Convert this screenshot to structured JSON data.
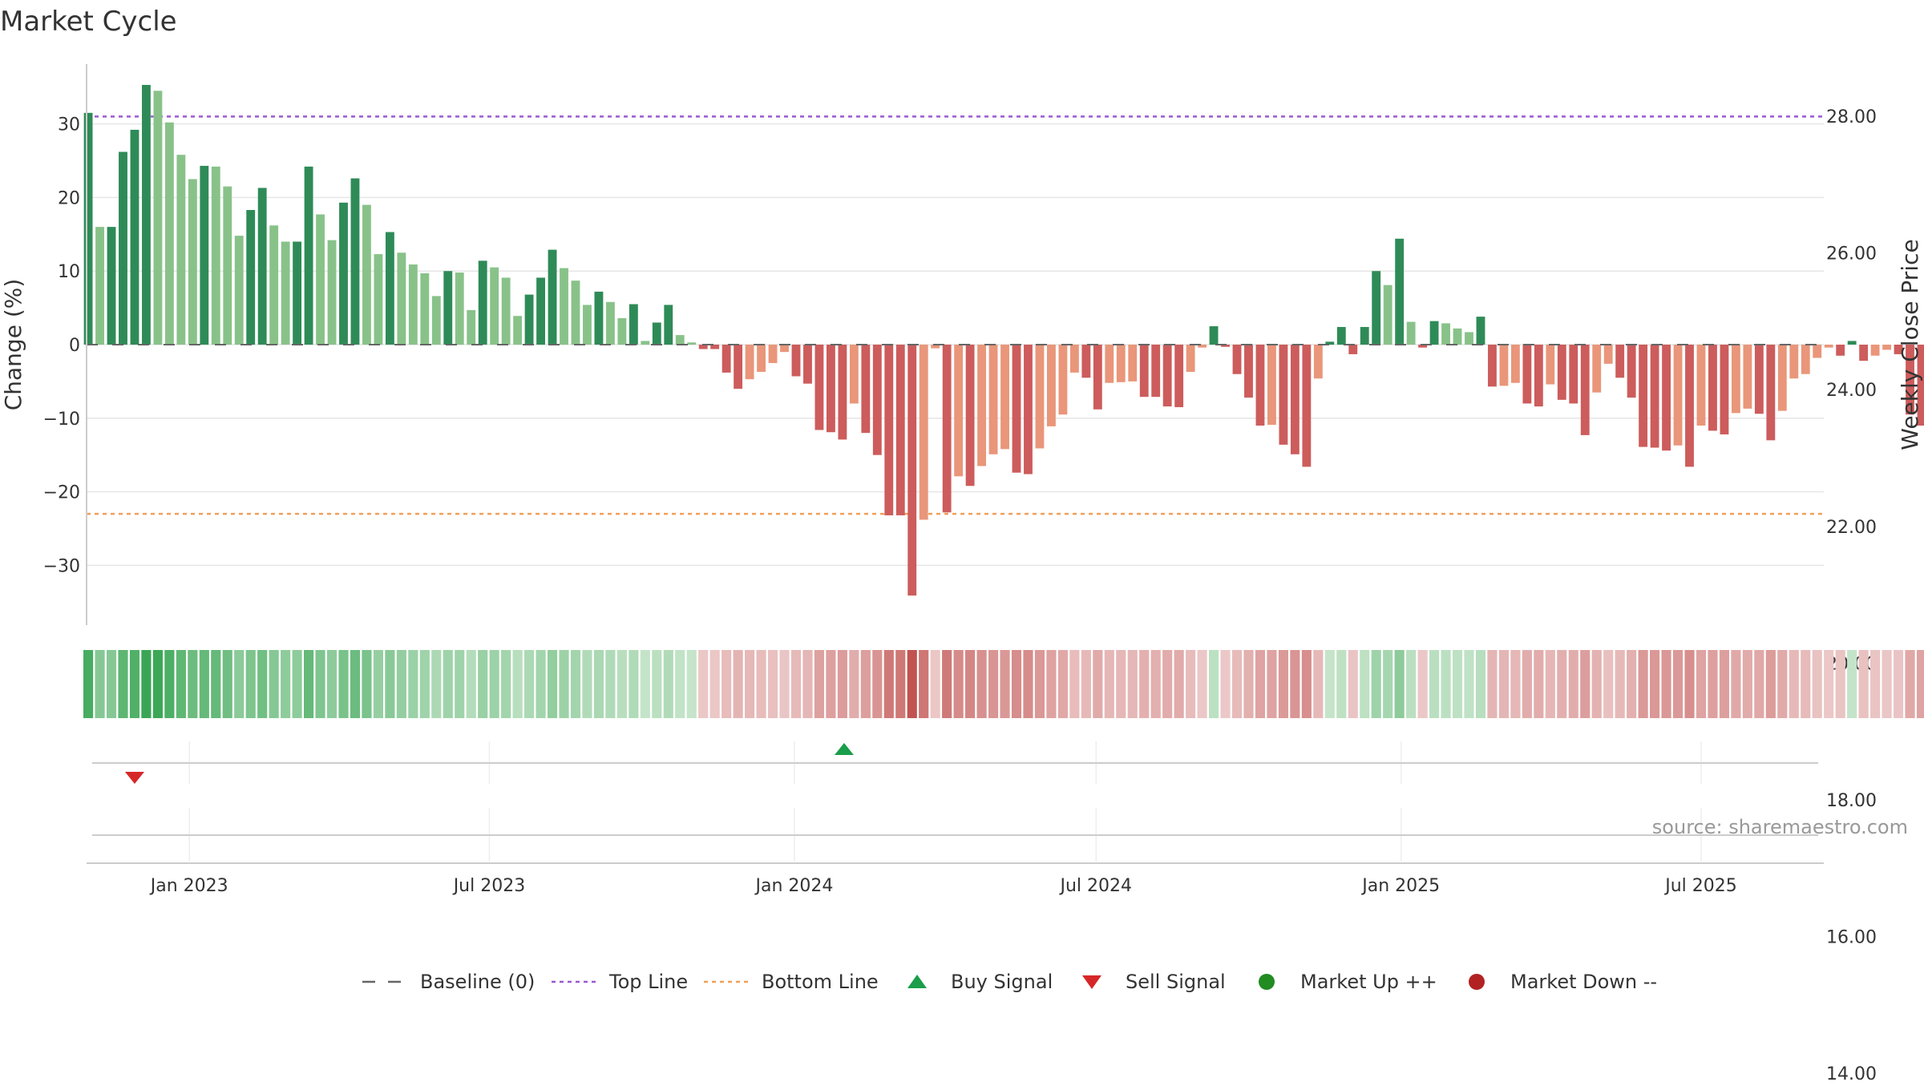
{
  "title": "Market Cycle",
  "source_text": "source: sharemaestro.com",
  "chart_data": {
    "type": "bar",
    "ylabel": "Change (%)",
    "y2label": "Weekly Close Price",
    "ylim": [
      -38,
      38
    ],
    "y2lim": [
      12.5,
      29.75
    ],
    "yticks": [
      30,
      20,
      10,
      0,
      -10,
      -20,
      -30
    ],
    "ytick_labels": [
      "30",
      "20",
      "10",
      "0",
      "−10",
      "−20",
      "−30"
    ],
    "y2ticks": [
      28,
      26,
      24,
      22,
      20,
      18,
      16,
      14
    ],
    "y2tick_labels": [
      "28.00",
      "26.00",
      "24.00",
      "22.00",
      "20.00",
      "18.00",
      "16.00",
      "14.00"
    ],
    "x_start": "2022-10-31",
    "x_end": "2025-09-13",
    "xticks": [
      "2023-01-01",
      "2023-07-01",
      "2024-01-01",
      "2024-07-01",
      "2025-01-01",
      "2025-07-01"
    ],
    "xtick_labels": [
      "Jan 2023",
      "Jul 2023",
      "Jan 2024",
      "Jul 2024",
      "Jan 2025",
      "Jul 2025"
    ],
    "top_line": 31,
    "bottom_line": -23,
    "baseline": 0,
    "grid": true,
    "legend_position": "bottom",
    "series": [
      {
        "name": "Change (%)",
        "start": "2022-11-01",
        "interval_days": 7,
        "values": [
          31.5,
          16.0,
          16.0,
          26.2,
          29.2,
          35.3,
          34.5,
          30.2,
          25.8,
          22.5,
          24.3,
          24.2,
          21.5,
          14.8,
          18.3,
          21.3,
          16.2,
          14.0,
          14.0,
          24.2,
          17.7,
          14.2,
          19.3,
          22.6,
          19.0,
          12.3,
          15.3,
          12.5,
          10.9,
          9.7,
          6.6,
          10.0,
          9.8,
          4.7,
          11.4,
          10.5,
          9.1,
          3.9,
          6.8,
          9.1,
          12.9,
          10.4,
          8.7,
          5.4,
          7.2,
          5.8,
          3.6,
          5.5,
          0.5,
          3.0,
          5.4,
          1.3,
          0.3,
          -0.6,
          -0.6,
          -3.8,
          -6.0,
          -4.7,
          -3.7,
          -2.5,
          -1.0,
          -4.3,
          -5.3,
          -11.6,
          -11.9,
          -12.9,
          -8.0,
          -12.0,
          -15.0,
          -23.2,
          -23.2,
          -34.1,
          -23.8,
          -0.5,
          -22.8,
          -17.9,
          -19.2,
          -16.5,
          -14.9,
          -14.2,
          -17.4,
          -17.6,
          -14.1,
          -11.1,
          -9.5,
          -3.8,
          -4.5,
          -8.8,
          -5.2,
          -5.1,
          -5.0,
          -7.1,
          -7.1,
          -8.4,
          -8.5,
          -3.7,
          -0.4,
          2.5,
          -0.3,
          -4.0,
          -7.2,
          -11.0,
          -10.9,
          -13.6,
          -14.9,
          -16.6,
          -4.6,
          0.4,
          2.4,
          -1.3,
          2.4,
          10.0,
          8.1,
          14.4,
          3.1,
          -0.4,
          3.2,
          2.9,
          2.2,
          1.7,
          3.8,
          -5.7,
          -5.6,
          -5.2,
          -8.0,
          -8.4,
          -5.4,
          -7.5,
          -8.0,
          -12.3,
          -6.5,
          -2.6,
          -4.5,
          -7.2,
          -13.9,
          -14.0,
          -14.4,
          -13.7,
          -16.6,
          -11.0,
          -11.7,
          -12.2,
          -9.3,
          -8.7,
          -9.4,
          -13.0,
          -9.0,
          -4.6,
          -4.0,
          -1.8,
          -0.4,
          -1.5,
          0.5,
          -2.2,
          -1.5,
          -0.7,
          -1.3,
          -9.5,
          -11.0
        ]
      }
    ],
    "buy_signals": [
      "2024-01-31"
    ],
    "sell_signals": [
      "2022-11-29"
    ],
    "legend": [
      "Baseline (0)",
      "Top Line",
      "Bottom Line",
      "Buy Signal",
      "Sell Signal",
      "Market Up ++",
      "Market Down --"
    ]
  },
  "colors": {
    "up_strong": "#2e8b57",
    "up_light": "#88c289",
    "down_strong": "#cd5c5c",
    "down_light": "#e9967a",
    "top_line": "#9b59d0",
    "bottom_line": "#f0a05a",
    "buy": "#1a9e4a",
    "sell": "#d62728",
    "market_up": "#228b22",
    "market_down": "#b22222",
    "baseline": "#666666"
  }
}
